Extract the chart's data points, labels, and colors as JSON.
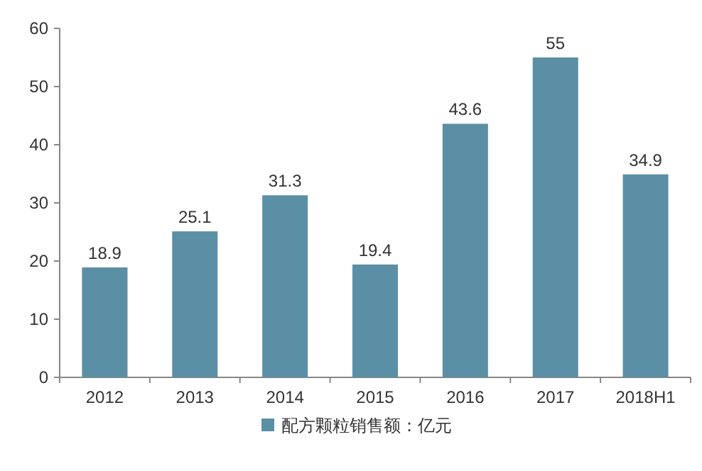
{
  "chart_data": {
    "type": "bar",
    "categories": [
      "2012",
      "2013",
      "2014",
      "2015",
      "2016",
      "2017",
      "2018H1"
    ],
    "series": [
      {
        "name": "配方颗粒销售额：亿元",
        "color": "#5b8fa6",
        "values": [
          18.9,
          25.1,
          31.3,
          19.4,
          43.6,
          55,
          34.9
        ]
      }
    ],
    "ylim": [
      0,
      60
    ],
    "yticks": [
      0,
      10,
      20,
      30,
      40,
      50,
      60
    ],
    "data_labels": true,
    "legend": "bottom",
    "grid": false
  }
}
